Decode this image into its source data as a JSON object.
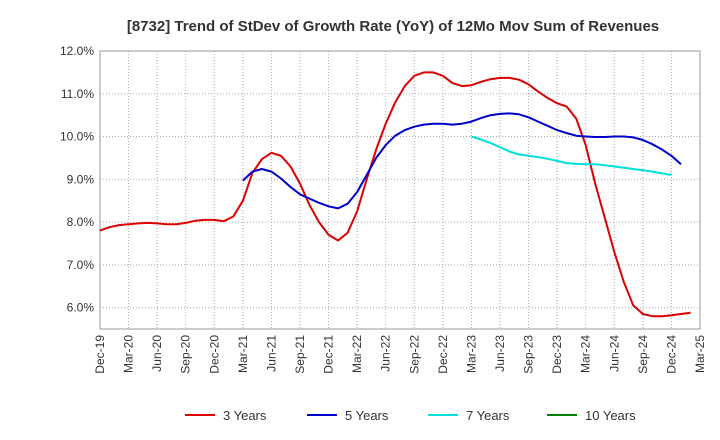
{
  "chart_data": {
    "type": "line",
    "title": "[8732]  Trend of StDev of Growth Rate (YoY) of 12Mo Mov Sum of Revenues",
    "xlabel": "",
    "ylabel": "",
    "x_tick_labels": [
      "Dec-19",
      "Mar-20",
      "Jun-20",
      "Sep-20",
      "Dec-20",
      "Mar-21",
      "Jun-21",
      "Sep-21",
      "Dec-21",
      "Mar-22",
      "Jun-22",
      "Sep-22",
      "Dec-22",
      "Mar-23",
      "Jun-23",
      "Sep-23",
      "Dec-23",
      "Mar-24",
      "Jun-24",
      "Sep-24",
      "Dec-24",
      "Mar-25"
    ],
    "y_tick_labels": [
      "6.0%",
      "7.0%",
      "8.0%",
      "9.0%",
      "10.0%",
      "11.0%",
      "12.0%"
    ],
    "ylim": [
      5.5,
      12.0
    ],
    "grid": true,
    "legend_position": "bottom",
    "series": [
      {
        "name": "3 Years",
        "color": "#dd0000",
        "start_index": 0,
        "values": [
          7.8,
          7.88,
          7.93,
          7.95,
          7.97,
          7.98,
          7.97,
          7.95,
          7.95,
          7.98,
          8.03,
          8.05,
          8.05,
          8.02,
          8.13,
          8.5,
          9.15,
          9.47,
          9.62,
          9.55,
          9.3,
          8.9,
          8.4,
          8.0,
          7.7,
          7.57,
          7.75,
          8.25,
          9.0,
          9.7,
          10.3,
          10.8,
          11.18,
          11.42,
          11.5,
          11.5,
          11.42,
          11.25,
          11.18,
          11.2,
          11.28,
          11.34,
          11.37,
          11.37,
          11.33,
          11.22,
          11.05,
          10.9,
          10.78,
          10.7,
          10.42,
          9.8,
          8.9,
          8.1,
          7.3,
          6.6,
          6.05,
          5.85,
          5.8,
          5.8,
          5.82,
          5.85,
          5.88
        ]
      },
      {
        "name": "5 Years",
        "color": "#0000cc",
        "start_index": 15,
        "values": [
          8.97,
          9.18,
          9.24,
          9.18,
          9.02,
          8.82,
          8.65,
          8.55,
          8.45,
          8.37,
          8.32,
          8.43,
          8.7,
          9.1,
          9.5,
          9.8,
          10.02,
          10.15,
          10.23,
          10.28,
          10.3,
          10.3,
          10.28,
          10.3,
          10.35,
          10.43,
          10.5,
          10.53,
          10.54,
          10.52,
          10.45,
          10.35,
          10.25,
          10.15,
          10.08,
          10.02,
          10.0,
          9.99,
          9.99,
          10.0,
          10.0,
          9.98,
          9.92,
          9.82,
          9.7,
          9.55,
          9.35
        ]
      },
      {
        "name": "7 Years",
        "color": "#00e0e0",
        "start_index": 39,
        "values": [
          10.0,
          9.93,
          9.85,
          9.75,
          9.65,
          9.58,
          9.55,
          9.52,
          9.48,
          9.43,
          9.38,
          9.36,
          9.35,
          9.35,
          9.33,
          9.3,
          9.27,
          9.24,
          9.21,
          9.18,
          9.14,
          9.1
        ]
      },
      {
        "name": "10 Years",
        "color": "#008000",
        "start_index": 0,
        "values": []
      }
    ]
  }
}
